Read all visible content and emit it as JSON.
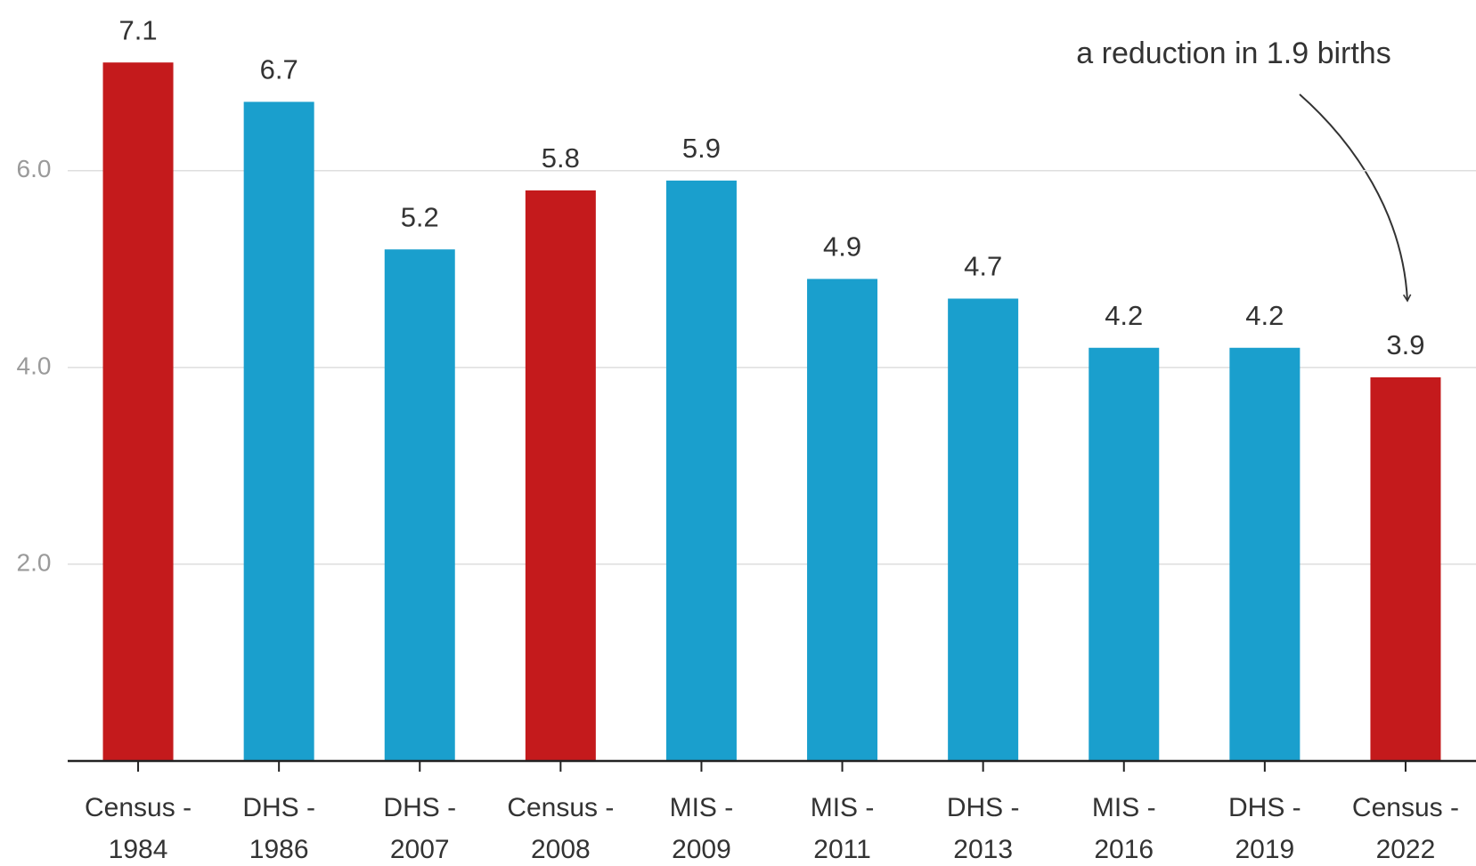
{
  "chart_data": {
    "type": "bar",
    "categories": [
      [
        "Census -",
        "1984"
      ],
      [
        "DHS -",
        "1986"
      ],
      [
        "DHS -",
        "2007"
      ],
      [
        "Census -",
        "2008"
      ],
      [
        "MIS -",
        "2009"
      ],
      [
        "MIS -",
        "2011"
      ],
      [
        "DHS -",
        "2013"
      ],
      [
        "MIS -",
        "2016"
      ],
      [
        "DHS -",
        "2019"
      ],
      [
        "Census -",
        "2022"
      ]
    ],
    "values": [
      7.1,
      6.7,
      5.2,
      5.8,
      5.9,
      4.9,
      4.7,
      4.2,
      4.2,
      3.9
    ],
    "colors": [
      "#c41a1c",
      "#1a9fcd",
      "#1a9fcd",
      "#c41a1c",
      "#1a9fcd",
      "#1a9fcd",
      "#1a9fcd",
      "#1a9fcd",
      "#1a9fcd",
      "#c41a1c"
    ],
    "ylim": [
      0,
      7.5
    ],
    "yticks": [
      {
        "value": 2,
        "label": "2.0"
      },
      {
        "value": 4,
        "label": "4.0"
      },
      {
        "value": 6,
        "label": "6.0"
      }
    ],
    "grid": true,
    "annotation": "a reduction in 1.9 births"
  }
}
